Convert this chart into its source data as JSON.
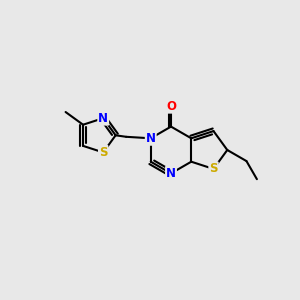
{
  "background_color": "#e8e8e8",
  "bond_color": "#000000",
  "bond_width": 1.5,
  "atom_colors": {
    "N": "#0000ff",
    "S": "#ccaa00",
    "O": "#ff0000",
    "C": "#000000"
  }
}
